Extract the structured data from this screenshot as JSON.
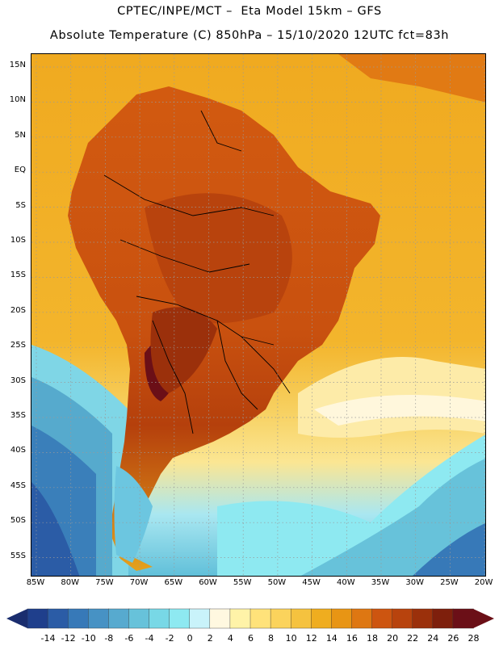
{
  "header": {
    "line1": "CPTEC/INPE/MCT –  Eta Model 15km – GFS",
    "line2": "Absolute Temperature (C) 850hPa – 15/10/2020 12UTC fct=83h"
  },
  "map": {
    "lat_labels": [
      "15N",
      "10N",
      "5N",
      "EQ",
      "5S",
      "10S",
      "15S",
      "20S",
      "25S",
      "30S",
      "35S",
      "40S",
      "45S",
      "50S",
      "55S"
    ],
    "lon_labels": [
      "85W",
      "80W",
      "75W",
      "70W",
      "65W",
      "60W",
      "55W",
      "50W",
      "45W",
      "40W",
      "35W",
      "30W",
      "25W",
      "20W"
    ]
  },
  "colorbar": {
    "labels": [
      "-14",
      "-12",
      "-10",
      "-8",
      "-6",
      "-4",
      "-2",
      "0",
      "2",
      "4",
      "6",
      "8",
      "10",
      "12",
      "14",
      "16",
      "18",
      "20",
      "22",
      "24",
      "26",
      "28"
    ],
    "colors": [
      "#1f3f8c",
      "#2b5ca6",
      "#3779b8",
      "#4792c4",
      "#57aacf",
      "#67c2da",
      "#78d8e6",
      "#8ee9f1",
      "#c9f3fa",
      "#fff8e0",
      "#fff3a8",
      "#ffe27a",
      "#fbd35c",
      "#f5c23f",
      "#efad1f",
      "#e89514",
      "#de7712",
      "#cd5510",
      "#b8430d",
      "#9b300b",
      "#7e1f0c",
      "#6b0f17"
    ]
  }
}
